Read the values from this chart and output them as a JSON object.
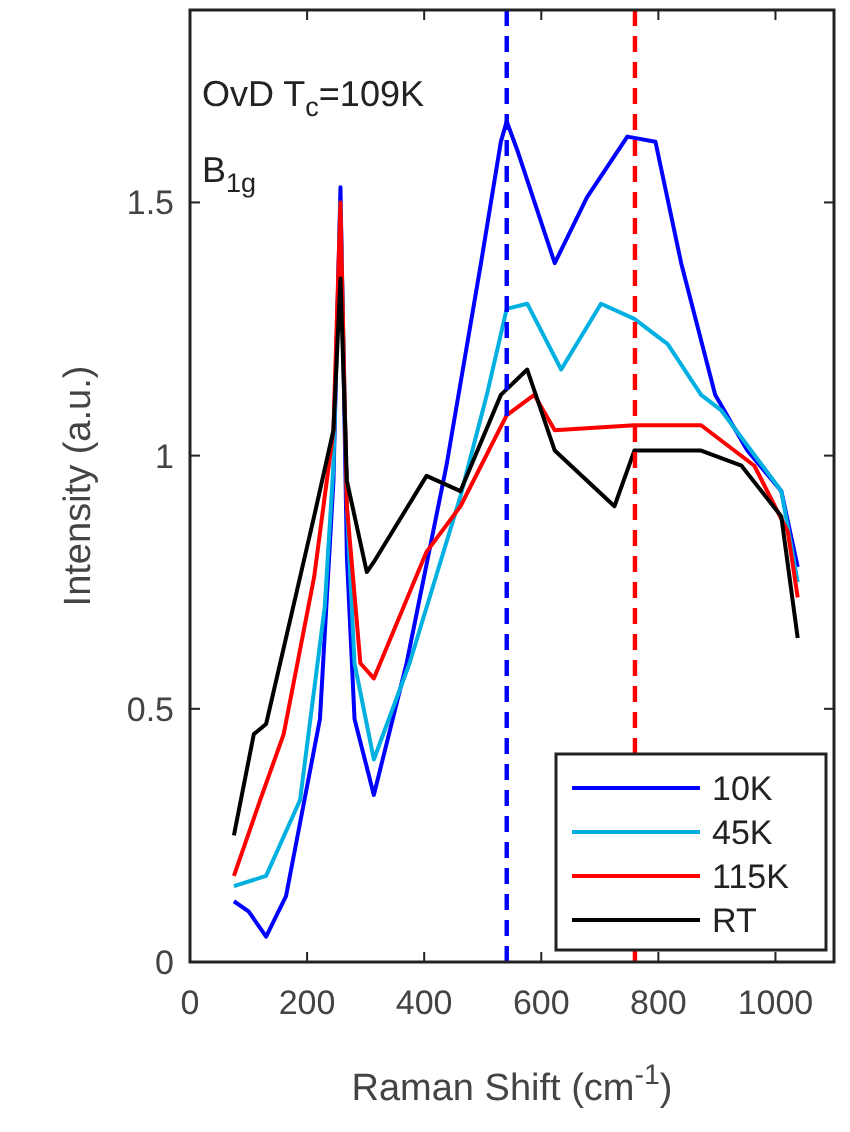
{
  "chart_data": {
    "type": "line",
    "xlabel": "Raman Shift (cm$^{-1}$)",
    "ylabel": "Intensity (a.u.)",
    "annotations": [
      "OvD T$_{c}$=109K",
      "B$_{1g}$"
    ],
    "xlim": [
      0,
      1100
    ],
    "xticks": [
      0,
      200,
      400,
      600,
      800,
      1000
    ],
    "ylim": [
      0,
      1.88
    ],
    "yticks": [
      0,
      0.5,
      1,
      1.5
    ],
    "legend": "bottom right",
    "grid": false,
    "marker": "none",
    "line_style": "solid",
    "ref_lines": [
      {
        "axis": "x",
        "value": 541,
        "color": "#0000ff",
        "line_style": "dashed"
      },
      {
        "axis": "x",
        "value": 760,
        "color": "#ff0000",
        "line_style": "dashed"
      }
    ],
    "series": [
      {
        "name": "10K",
        "color": "#0000ff",
        "x": [
          75,
          100,
          130,
          164,
          222,
          245,
          257,
          268,
          281,
          314,
          370,
          438,
          497,
          531,
          541,
          560,
          623,
          678,
          747,
          795,
          839,
          897,
          952,
          1010,
          1038
        ],
        "values": [
          0.12,
          0.1,
          0.05,
          0.13,
          0.48,
          0.95,
          1.53,
          0.8,
          0.48,
          0.33,
          0.59,
          0.98,
          1.38,
          1.62,
          1.66,
          1.6,
          1.38,
          1.51,
          1.63,
          1.62,
          1.38,
          1.12,
          1.01,
          0.93,
          0.78
        ]
      },
      {
        "name": "45K",
        "color": "#00b0e0",
        "x": [
          75,
          130,
          188,
          230,
          245,
          257,
          268,
          281,
          314,
          375,
          462,
          507,
          541,
          576,
          634,
          702,
          759,
          816,
          873,
          907,
          952,
          1010,
          1038
        ],
        "values": [
          0.15,
          0.17,
          0.32,
          0.7,
          0.98,
          1.5,
          0.9,
          0.59,
          0.4,
          0.59,
          0.92,
          1.12,
          1.29,
          1.3,
          1.17,
          1.3,
          1.27,
          1.22,
          1.12,
          1.09,
          1.02,
          0.93,
          0.75
        ]
      },
      {
        "name": "115K",
        "color": "#ff0000",
        "x": [
          75,
          120,
          160,
          212,
          245,
          257,
          268,
          291,
          314,
          404,
          462,
          541,
          588,
          623,
          759,
          873,
          964,
          1021,
          1038
        ],
        "values": [
          0.17,
          0.32,
          0.45,
          0.76,
          1.05,
          1.5,
          0.9,
          0.59,
          0.56,
          0.81,
          0.9,
          1.08,
          1.12,
          1.05,
          1.06,
          1.06,
          0.98,
          0.85,
          0.72
        ]
      },
      {
        "name": "RT",
        "color": "#000000",
        "x": [
          75,
          109,
          130,
          212,
          245,
          257,
          268,
          302,
          314,
          404,
          462,
          531,
          576,
          623,
          725,
          759,
          873,
          942,
          1010,
          1038
        ],
        "values": [
          0.25,
          0.45,
          0.47,
          0.88,
          1.05,
          1.35,
          0.95,
          0.77,
          0.79,
          0.96,
          0.93,
          1.12,
          1.17,
          1.01,
          0.9,
          1.01,
          1.01,
          0.98,
          0.88,
          0.64
        ]
      }
    ]
  }
}
